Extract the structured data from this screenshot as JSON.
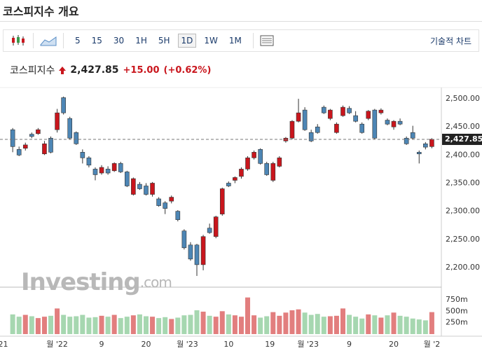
{
  "header": {
    "title": "코스피지수 개요"
  },
  "toolbar": {
    "buttons": [
      "5",
      "15",
      "30",
      "1H",
      "5H",
      "1D",
      "1W",
      "1M"
    ],
    "selected": "1D",
    "right": "기술적 차트"
  },
  "quote": {
    "name": "코스피지수",
    "change": "+15.00",
    "change_pct": "(+0.62%)"
  },
  "watermark": [
    "Investing",
    ".com"
  ],
  "chart_data": {
    "type": "candlestick",
    "up_color": "#c9161d",
    "down_color": "#4d86b5",
    "volume_colors": {
      "up": "#e27e7e",
      "down": "#a6d7b0"
    },
    "last": {
      "value": 2427.85,
      "label": "2,427.85"
    },
    "ylim": [
      2165,
      2520
    ],
    "yticks": [
      {
        "value": 2500,
        "label": "2,500.00"
      },
      {
        "value": 2450,
        "label": "2,450.00"
      },
      {
        "value": 2400,
        "label": "2,400.00"
      },
      {
        "value": 2350,
        "label": "2,350.00"
      },
      {
        "value": 2300,
        "label": "2,300.00"
      },
      {
        "value": 2250,
        "label": "2,250.00"
      },
      {
        "value": 2200,
        "label": "2,200.00"
      }
    ],
    "volume_ylim": [
      0,
      1025
    ],
    "volume_ticks": [
      {
        "value": 750,
        "label": "750m"
      },
      {
        "value": 500,
        "label": "500m"
      },
      {
        "value": 250,
        "label": "250m"
      }
    ],
    "xlim": [
      -2,
      67.5
    ],
    "xticks": [
      {
        "value": -1.5,
        "label": "21"
      },
      {
        "value": 7,
        "label": "월 '22"
      },
      {
        "value": 14,
        "label": "9"
      },
      {
        "value": 21,
        "label": "20"
      },
      {
        "value": 27.5,
        "label": "월 '23"
      },
      {
        "value": 34,
        "label": "10"
      },
      {
        "value": 40.5,
        "label": "19"
      },
      {
        "value": 46.5,
        "label": "월 '23"
      },
      {
        "value": 53,
        "label": "9"
      },
      {
        "value": 60,
        "label": "20"
      },
      {
        "value": 66,
        "label": "월 '2"
      }
    ],
    "open": [
      2445,
      2410,
      2412,
      2437,
      2438,
      2402,
      2430,
      2445,
      2502,
      2465,
      2440,
      2405,
      2395,
      2375,
      2368,
      2375,
      2372,
      2385,
      2370,
      2330,
      2348,
      2345,
      2330,
      2322,
      2315,
      2318,
      2300,
      2265,
      2240,
      2240,
      2205,
      2270,
      2255,
      2295,
      2350,
      2355,
      2362,
      2375,
      2395,
      2410,
      2385,
      2355,
      2380,
      2425,
      2430,
      2460,
      2480,
      2440,
      2450,
      2485,
      2465,
      2440,
      2470,
      2483,
      2470,
      2455,
      2465,
      2480,
      2475,
      2462,
      2450,
      2460,
      2430,
      2440,
      2405,
      2420,
      2415
    ],
    "high": [
      2448,
      2415,
      2422,
      2440,
      2448,
      2425,
      2433,
      2482,
      2504,
      2468,
      2442,
      2410,
      2398,
      2378,
      2382,
      2380,
      2387,
      2388,
      2372,
      2360,
      2352,
      2350,
      2352,
      2325,
      2318,
      2328,
      2302,
      2268,
      2245,
      2242,
      2258,
      2278,
      2292,
      2342,
      2353,
      2362,
      2378,
      2398,
      2408,
      2412,
      2388,
      2388,
      2398,
      2432,
      2462,
      2500,
      2485,
      2445,
      2455,
      2488,
      2482,
      2458,
      2488,
      2487,
      2478,
      2458,
      2480,
      2482,
      2483,
      2465,
      2462,
      2465,
      2433,
      2452,
      2408,
      2423,
      2430
    ],
    "low": [
      2405,
      2398,
      2408,
      2430,
      2436,
      2400,
      2403,
      2440,
      2472,
      2428,
      2418,
      2385,
      2378,
      2355,
      2365,
      2365,
      2370,
      2368,
      2343,
      2328,
      2338,
      2328,
      2326,
      2308,
      2295,
      2314,
      2282,
      2232,
      2212,
      2185,
      2195,
      2260,
      2252,
      2292,
      2343,
      2350,
      2358,
      2372,
      2392,
      2383,
      2363,
      2352,
      2378,
      2422,
      2428,
      2458,
      2443,
      2423,
      2438,
      2473,
      2462,
      2438,
      2468,
      2473,
      2458,
      2438,
      2462,
      2428,
      2472,
      2453,
      2445,
      2453,
      2418,
      2428,
      2385,
      2410,
      2412
    ],
    "close": [
      2415,
      2400,
      2418,
      2433,
      2445,
      2420,
      2405,
      2475,
      2475,
      2430,
      2420,
      2395,
      2382,
      2365,
      2378,
      2368,
      2385,
      2370,
      2345,
      2358,
      2340,
      2330,
      2350,
      2310,
      2305,
      2325,
      2285,
      2235,
      2215,
      2205,
      2255,
      2262,
      2290,
      2340,
      2345,
      2360,
      2375,
      2395,
      2405,
      2385,
      2365,
      2385,
      2395,
      2430,
      2460,
      2475,
      2445,
      2425,
      2440,
      2475,
      2480,
      2455,
      2485,
      2475,
      2460,
      2440,
      2478,
      2430,
      2480,
      2455,
      2460,
      2455,
      2420,
      2430,
      2402,
      2414,
      2428
    ],
    "volume": [
      430,
      380,
      420,
      390,
      350,
      380,
      400,
      560,
      420,
      380,
      390,
      420,
      360,
      370,
      400,
      380,
      420,
      350,
      380,
      410,
      430,
      390,
      380,
      350,
      370,
      330,
      360,
      410,
      420,
      520,
      490,
      400,
      380,
      500,
      430,
      410,
      380,
      800,
      410,
      360,
      390,
      480,
      400,
      470,
      520,
      540,
      470,
      420,
      440,
      380,
      390,
      400,
      560,
      420,
      380,
      340,
      430,
      410,
      360,
      410,
      470,
      400,
      380,
      340,
      320,
      300,
      480
    ]
  }
}
